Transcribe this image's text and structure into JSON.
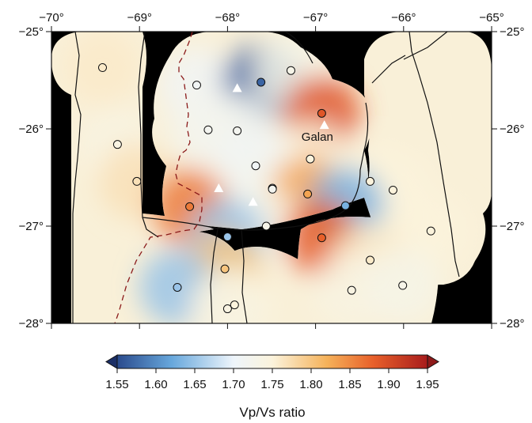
{
  "map": {
    "lon_range": [
      -70,
      -65
    ],
    "lat_range": [
      -28,
      -25
    ],
    "lon_ticks": [
      {
        "value": -70,
        "label": "−70°"
      },
      {
        "value": -69,
        "label": "−69°"
      },
      {
        "value": -68,
        "label": "−68°"
      },
      {
        "value": -67,
        "label": "−67°"
      },
      {
        "value": -66,
        "label": "−66°"
      },
      {
        "value": -65,
        "label": "−65°"
      }
    ],
    "lat_ticks": [
      {
        "value": -25,
        "label": "−25°"
      },
      {
        "value": -26,
        "label": "−26°"
      },
      {
        "value": -27,
        "label": "−27°"
      },
      {
        "value": -28,
        "label": "−28°"
      }
    ],
    "background_color": "#000000",
    "border_color": "#111111",
    "dashed_line_color": "#8b1a1a",
    "place_label": {
      "text": "Galan",
      "lon": -66.98,
      "lat": -26.08
    }
  },
  "colorbar": {
    "title": "Vp/Vs ratio",
    "min": 1.55,
    "max": 1.95,
    "ticks": [
      "1.55",
      "1.60",
      "1.65",
      "1.70",
      "1.75",
      "1.80",
      "1.85",
      "1.90",
      "1.95"
    ],
    "stops": [
      {
        "value": 1.55,
        "color": "#2a4b8d"
      },
      {
        "value": 1.62,
        "color": "#67a7dc"
      },
      {
        "value": 1.7,
        "color": "#eef5fb"
      },
      {
        "value": 1.75,
        "color": "#fbf3dc"
      },
      {
        "value": 1.82,
        "color": "#f5b25a"
      },
      {
        "value": 1.88,
        "color": "#e8602a"
      },
      {
        "value": 1.95,
        "color": "#a81c1c"
      }
    ],
    "low_end_color": "#1c2f66",
    "high_end_color": "#8e1a1a"
  },
  "stations": [
    {
      "lon": -69.42,
      "lat": -25.37,
      "vpvs": 1.76
    },
    {
      "lon": -68.35,
      "lat": -25.55,
      "vpvs": 1.71
    },
    {
      "lon": -67.62,
      "lat": -25.52,
      "vpvs": 1.57
    },
    {
      "lon": -67.28,
      "lat": -25.4,
      "vpvs": 1.73
    },
    {
      "lon": -66.93,
      "lat": -25.84,
      "vpvs": 1.89
    },
    {
      "lon": -68.22,
      "lat": -26.01,
      "vpvs": 1.72
    },
    {
      "lon": -67.89,
      "lat": -26.02,
      "vpvs": 1.72
    },
    {
      "lon": -69.25,
      "lat": -26.16,
      "vpvs": 1.74
    },
    {
      "lon": -67.06,
      "lat": -26.31,
      "vpvs": 1.75
    },
    {
      "lon": -67.68,
      "lat": -26.38,
      "vpvs": 1.71
    },
    {
      "lon": -67.49,
      "lat": -26.61,
      "vpvs": 1.72
    },
    {
      "lon": -67.49,
      "lat": -26.62,
      "vpvs": 1.72
    },
    {
      "lon": -67.09,
      "lat": -26.67,
      "vpvs": 1.83
    },
    {
      "lon": -69.03,
      "lat": -26.54,
      "vpvs": 1.77
    },
    {
      "lon": -66.38,
      "lat": -26.54,
      "vpvs": 1.75
    },
    {
      "lon": -66.12,
      "lat": -26.63,
      "vpvs": 1.75
    },
    {
      "lon": -66.66,
      "lat": -26.79,
      "vpvs": 1.63
    },
    {
      "lon": -68.43,
      "lat": -26.8,
      "vpvs": 1.86
    },
    {
      "lon": -67.56,
      "lat": -27.0,
      "vpvs": 1.73
    },
    {
      "lon": -65.69,
      "lat": -27.05,
      "vpvs": 1.75
    },
    {
      "lon": -68.0,
      "lat": -27.11,
      "vpvs": 1.65
    },
    {
      "lon": -66.93,
      "lat": -27.12,
      "vpvs": 1.88
    },
    {
      "lon": -66.38,
      "lat": -27.35,
      "vpvs": 1.76
    },
    {
      "lon": -68.03,
      "lat": -27.44,
      "vpvs": 1.8
    },
    {
      "lon": -68.57,
      "lat": -27.63,
      "vpvs": 1.65
    },
    {
      "lon": -66.59,
      "lat": -27.66,
      "vpvs": 1.74
    },
    {
      "lon": -66.01,
      "lat": -27.61,
      "vpvs": 1.73
    },
    {
      "lon": -67.92,
      "lat": -27.81,
      "vpvs": 1.75
    },
    {
      "lon": -68.0,
      "lat": -27.85,
      "vpvs": 1.74
    }
  ],
  "volcanoes": [
    {
      "lon": -67.89,
      "lat": -25.58
    },
    {
      "lon": -66.9,
      "lat": -25.96
    },
    {
      "lon": -68.1,
      "lat": -26.61
    },
    {
      "lon": -67.71,
      "lat": -26.75
    }
  ]
}
